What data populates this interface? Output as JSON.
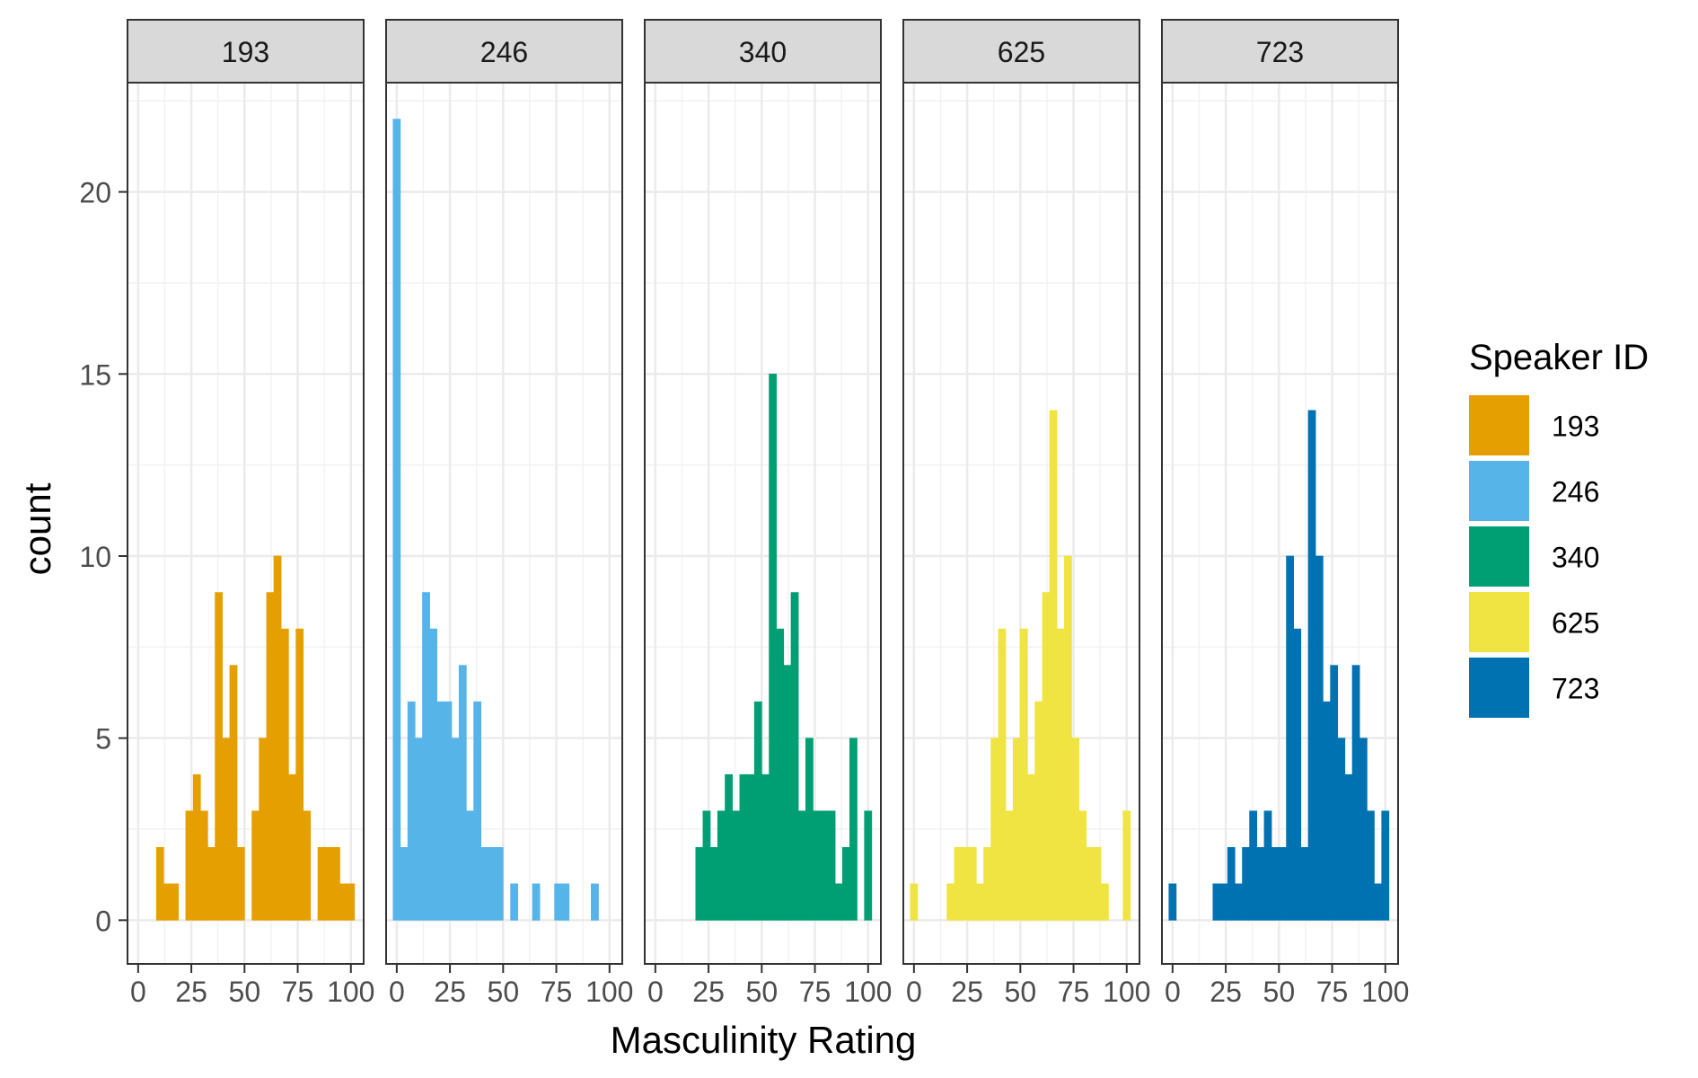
{
  "chart_data": {
    "type": "bar",
    "xlabel": "Masculinity Rating",
    "ylabel": "count",
    "xlim": [
      -5,
      106
    ],
    "ylim": [
      -1.2,
      23
    ],
    "x_ticks": [
      0,
      25,
      50,
      75,
      100
    ],
    "y_ticks": [
      0,
      5,
      10,
      15,
      20
    ],
    "bin_width": 3.45,
    "grid": true,
    "legend_position": "right",
    "legend": {
      "title": "Speaker ID",
      "entries": [
        {
          "label": "193",
          "color": "#E69F00"
        },
        {
          "label": "246",
          "color": "#56B4E9"
        },
        {
          "label": "340",
          "color": "#009E73"
        },
        {
          "label": "625",
          "color": "#F0E442"
        },
        {
          "label": "723",
          "color": "#0072B2"
        }
      ]
    },
    "panels": [
      {
        "name": "193",
        "color": "#E69F00",
        "bins": [
          {
            "x": 10.3,
            "count": 2
          },
          {
            "x": 13.8,
            "count": 1
          },
          {
            "x": 17.2,
            "count": 1
          },
          {
            "x": 24.1,
            "count": 3
          },
          {
            "x": 27.6,
            "count": 4
          },
          {
            "x": 31.0,
            "count": 3
          },
          {
            "x": 34.5,
            "count": 2
          },
          {
            "x": 37.9,
            "count": 9
          },
          {
            "x": 41.4,
            "count": 5
          },
          {
            "x": 44.8,
            "count": 7
          },
          {
            "x": 48.3,
            "count": 2
          },
          {
            "x": 55.2,
            "count": 3
          },
          {
            "x": 58.6,
            "count": 5
          },
          {
            "x": 62.1,
            "count": 9
          },
          {
            "x": 65.5,
            "count": 10
          },
          {
            "x": 69.0,
            "count": 8
          },
          {
            "x": 72.4,
            "count": 4
          },
          {
            "x": 75.9,
            "count": 8
          },
          {
            "x": 79.3,
            "count": 3
          },
          {
            "x": 86.2,
            "count": 2
          },
          {
            "x": 89.7,
            "count": 2
          },
          {
            "x": 93.1,
            "count": 2
          },
          {
            "x": 96.6,
            "count": 1
          },
          {
            "x": 100.0,
            "count": 1
          }
        ]
      },
      {
        "name": "246",
        "color": "#56B4E9",
        "bins": [
          {
            "x": 0.0,
            "count": 22
          },
          {
            "x": 3.4,
            "count": 2
          },
          {
            "x": 6.9,
            "count": 6
          },
          {
            "x": 10.3,
            "count": 5
          },
          {
            "x": 13.8,
            "count": 9
          },
          {
            "x": 17.2,
            "count": 8
          },
          {
            "x": 20.7,
            "count": 6
          },
          {
            "x": 24.1,
            "count": 6
          },
          {
            "x": 27.6,
            "count": 5
          },
          {
            "x": 31.0,
            "count": 7
          },
          {
            "x": 34.5,
            "count": 3
          },
          {
            "x": 37.9,
            "count": 6
          },
          {
            "x": 41.4,
            "count": 2
          },
          {
            "x": 44.8,
            "count": 2
          },
          {
            "x": 48.3,
            "count": 2
          },
          {
            "x": 55.2,
            "count": 1
          },
          {
            "x": 65.5,
            "count": 1
          },
          {
            "x": 75.9,
            "count": 1
          },
          {
            "x": 79.3,
            "count": 1
          },
          {
            "x": 93.1,
            "count": 1
          }
        ]
      },
      {
        "name": "340",
        "color": "#009E73",
        "bins": [
          {
            "x": 20.7,
            "count": 2
          },
          {
            "x": 24.1,
            "count": 3
          },
          {
            "x": 27.6,
            "count": 2
          },
          {
            "x": 31.0,
            "count": 3
          },
          {
            "x": 34.5,
            "count": 4
          },
          {
            "x": 37.9,
            "count": 3
          },
          {
            "x": 41.4,
            "count": 4
          },
          {
            "x": 44.8,
            "count": 4
          },
          {
            "x": 48.3,
            "count": 6
          },
          {
            "x": 51.7,
            "count": 4
          },
          {
            "x": 55.2,
            "count": 15
          },
          {
            "x": 58.6,
            "count": 8
          },
          {
            "x": 62.1,
            "count": 7
          },
          {
            "x": 65.5,
            "count": 9
          },
          {
            "x": 69.0,
            "count": 3
          },
          {
            "x": 72.4,
            "count": 5
          },
          {
            "x": 75.9,
            "count": 3
          },
          {
            "x": 79.3,
            "count": 3
          },
          {
            "x": 82.8,
            "count": 3
          },
          {
            "x": 86.2,
            "count": 1
          },
          {
            "x": 89.7,
            "count": 2
          },
          {
            "x": 93.1,
            "count": 5
          },
          {
            "x": 100.0,
            "count": 3
          }
        ]
      },
      {
        "name": "625",
        "color": "#F0E442",
        "bins": [
          {
            "x": 0.0,
            "count": 1
          },
          {
            "x": 17.2,
            "count": 1
          },
          {
            "x": 20.7,
            "count": 2
          },
          {
            "x": 24.1,
            "count": 2
          },
          {
            "x": 27.6,
            "count": 2
          },
          {
            "x": 31.0,
            "count": 1
          },
          {
            "x": 34.5,
            "count": 2
          },
          {
            "x": 37.9,
            "count": 5
          },
          {
            "x": 41.4,
            "count": 8
          },
          {
            "x": 44.8,
            "count": 3
          },
          {
            "x": 48.3,
            "count": 5
          },
          {
            "x": 51.7,
            "count": 8
          },
          {
            "x": 55.2,
            "count": 4
          },
          {
            "x": 58.6,
            "count": 6
          },
          {
            "x": 62.1,
            "count": 9
          },
          {
            "x": 65.5,
            "count": 14
          },
          {
            "x": 69.0,
            "count": 8
          },
          {
            "x": 72.4,
            "count": 10
          },
          {
            "x": 75.9,
            "count": 5
          },
          {
            "x": 79.3,
            "count": 3
          },
          {
            "x": 82.8,
            "count": 2
          },
          {
            "x": 86.2,
            "count": 2
          },
          {
            "x": 89.7,
            "count": 1
          },
          {
            "x": 100.0,
            "count": 3
          }
        ]
      },
      {
        "name": "723",
        "color": "#0072B2",
        "bins": [
          {
            "x": 0.0,
            "count": 1
          },
          {
            "x": 20.7,
            "count": 1
          },
          {
            "x": 24.1,
            "count": 1
          },
          {
            "x": 27.6,
            "count": 2
          },
          {
            "x": 31.0,
            "count": 1
          },
          {
            "x": 34.5,
            "count": 2
          },
          {
            "x": 37.9,
            "count": 3
          },
          {
            "x": 41.4,
            "count": 2
          },
          {
            "x": 44.8,
            "count": 3
          },
          {
            "x": 48.3,
            "count": 2
          },
          {
            "x": 51.7,
            "count": 2
          },
          {
            "x": 55.2,
            "count": 10
          },
          {
            "x": 58.6,
            "count": 8
          },
          {
            "x": 62.1,
            "count": 2
          },
          {
            "x": 65.5,
            "count": 14
          },
          {
            "x": 69.0,
            "count": 10
          },
          {
            "x": 72.4,
            "count": 6
          },
          {
            "x": 75.9,
            "count": 7
          },
          {
            "x": 79.3,
            "count": 5
          },
          {
            "x": 82.8,
            "count": 4
          },
          {
            "x": 86.2,
            "count": 7
          },
          {
            "x": 89.7,
            "count": 5
          },
          {
            "x": 93.1,
            "count": 3
          },
          {
            "x": 96.6,
            "count": 1
          },
          {
            "x": 100.0,
            "count": 3
          }
        ]
      }
    ]
  }
}
